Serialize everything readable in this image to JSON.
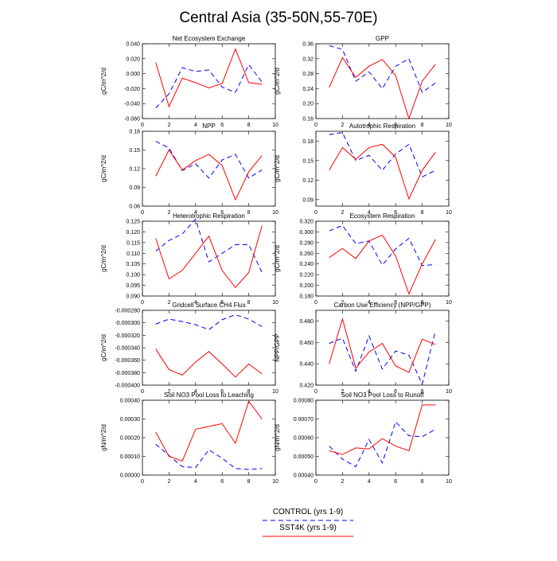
{
  "figure": {
    "title": "Central Asia (35-50N,55-70E)"
  },
  "legend": {
    "placement": "bottom-center",
    "entries": [
      {
        "label": "CONTROL (yrs 1-9)",
        "color": "#0000ff",
        "style": "dashed"
      },
      {
        "label": "SST4K (yrs 1-9)",
        "color": "#ff0000",
        "style": "solid"
      }
    ]
  },
  "chart_data": [
    {
      "type": "line",
      "title": "Net Ecosystem Exchange",
      "ylabel": "gC/m^2/d",
      "x": [
        1,
        2,
        3,
        4,
        5,
        6,
        7,
        8,
        9
      ],
      "xlim": [
        0,
        10
      ],
      "xticks": [
        "0",
        "2",
        "4",
        "6",
        "8",
        "10"
      ],
      "ylim": [
        -0.06,
        0.04
      ],
      "yticks": [
        "-0.060",
        "-0.040",
        "-0.020",
        "0.000",
        "0.020",
        "0.040"
      ],
      "series": [
        {
          "name": "CONTROL (yrs 1-9)",
          "color": "#0000ff",
          "style": "dashed",
          "values": [
            -0.046,
            -0.027,
            0.008,
            0.003,
            0.005,
            -0.018,
            -0.025,
            0.012,
            -0.011
          ]
        },
        {
          "name": "SST4K (yrs 1-9)",
          "color": "#ff0000",
          "style": "solid",
          "values": [
            0.015,
            -0.044,
            -0.006,
            -0.012,
            -0.019,
            -0.013,
            0.033,
            -0.012,
            -0.014
          ]
        }
      ]
    },
    {
      "type": "line",
      "title": "GPP",
      "ylabel": "gC/m^2/d",
      "x": [
        1,
        2,
        3,
        4,
        5,
        6,
        7,
        8,
        9
      ],
      "xlim": [
        0,
        10
      ],
      "xticks": [
        "0",
        "2",
        "4",
        "6",
        "8",
        "10"
      ],
      "ylim": [
        0.16,
        0.36
      ],
      "yticks": [
        "0.16",
        "0.20",
        "0.24",
        "0.28",
        "0.32",
        "0.36"
      ],
      "series": [
        {
          "name": "CONTROL (yrs 1-9)",
          "color": "#0000ff",
          "style": "dashed",
          "values": [
            0.355,
            0.345,
            0.26,
            0.285,
            0.24,
            0.3,
            0.32,
            0.23,
            0.255
          ]
        },
        {
          "name": "SST4K (yrs 1-9)",
          "color": "#ff0000",
          "style": "solid",
          "values": [
            0.243,
            0.323,
            0.27,
            0.3,
            0.318,
            0.275,
            0.16,
            0.26,
            0.305
          ]
        }
      ]
    },
    {
      "type": "line",
      "title": "NPP",
      "ylabel": "gC/m^2/d",
      "x": [
        1,
        2,
        3,
        4,
        5,
        6,
        7,
        8,
        9
      ],
      "xlim": [
        0,
        10
      ],
      "xticks": [
        "0",
        "2",
        "4",
        "6",
        "8",
        "10"
      ],
      "ylim": [
        0.06,
        0.18
      ],
      "yticks": [
        "0.06",
        "0.09",
        "0.12",
        "0.15",
        "0.18"
      ],
      "series": [
        {
          "name": "CONTROL (yrs 1-9)",
          "color": "#0000ff",
          "style": "dashed",
          "values": [
            0.164,
            0.153,
            0.117,
            0.128,
            0.105,
            0.134,
            0.143,
            0.105,
            0.118
          ]
        },
        {
          "name": "SST4K (yrs 1-9)",
          "color": "#ff0000",
          "style": "solid",
          "values": [
            0.108,
            0.15,
            0.118,
            0.133,
            0.143,
            0.125,
            0.07,
            0.115,
            0.141
          ]
        }
      ]
    },
    {
      "type": "line",
      "title": "Autotrophic Respiration",
      "ylabel": "gC/m^2/d",
      "x": [
        1,
        2,
        3,
        4,
        5,
        6,
        7,
        8,
        9
      ],
      "xlim": [
        0,
        10
      ],
      "xticks": [
        "0",
        "2",
        "4",
        "6",
        "8",
        "10"
      ],
      "ylim": [
        0.08,
        0.195
      ],
      "yticks": [
        "0.09",
        "0.12",
        "0.15",
        "0.18"
      ],
      "series": [
        {
          "name": "CONTROL (yrs 1-9)",
          "color": "#0000ff",
          "style": "dashed",
          "values": [
            0.19,
            0.193,
            0.15,
            0.158,
            0.135,
            0.16,
            0.175,
            0.125,
            0.135
          ]
        },
        {
          "name": "SST4K (yrs 1-9)",
          "color": "#ff0000",
          "style": "solid",
          "values": [
            0.135,
            0.17,
            0.152,
            0.17,
            0.175,
            0.155,
            0.091,
            0.135,
            0.163
          ]
        }
      ]
    },
    {
      "type": "line",
      "title": "Heterotrophic Respiration",
      "ylabel": "gC/m^2/d",
      "x": [
        1,
        2,
        3,
        4,
        5,
        6,
        7,
        8,
        9
      ],
      "xlim": [
        0,
        10
      ],
      "xticks": [
        "0",
        "2",
        "4",
        "6",
        "8",
        "10"
      ],
      "ylim": [
        0.09,
        0.125
      ],
      "yticks": [
        "0.090",
        "0.095",
        "0.100",
        "0.105",
        "0.110",
        "0.115",
        "0.120",
        "0.125"
      ],
      "series": [
        {
          "name": "CONTROL (yrs 1-9)",
          "color": "#0000ff",
          "style": "dashed",
          "values": [
            0.111,
            0.116,
            0.119,
            0.126,
            0.106,
            0.11,
            0.114,
            0.114,
            0.101
          ]
        },
        {
          "name": "SST4K (yrs 1-9)",
          "color": "#ff0000",
          "style": "solid",
          "values": [
            0.117,
            0.098,
            0.102,
            0.11,
            0.118,
            0.102,
            0.094,
            0.101,
            0.123
          ]
        }
      ]
    },
    {
      "type": "line",
      "title": "Ecosystem Respiration",
      "ylabel": "gC/m^2/d",
      "x": [
        1,
        2,
        3,
        4,
        5,
        6,
        7,
        8,
        9
      ],
      "xlim": [
        0,
        10
      ],
      "xticks": [
        "0",
        "2",
        "4",
        "6",
        "8",
        "10"
      ],
      "ylim": [
        0.18,
        0.32
      ],
      "yticks": [
        "0.180",
        "0.200",
        "0.220",
        "0.240",
        "0.260",
        "0.280",
        "0.300",
        "0.320"
      ],
      "series": [
        {
          "name": "CONTROL (yrs 1-9)",
          "color": "#0000ff",
          "style": "dashed",
          "values": [
            0.302,
            0.312,
            0.278,
            0.283,
            0.238,
            0.268,
            0.288,
            0.237,
            0.239
          ]
        },
        {
          "name": "SST4K (yrs 1-9)",
          "color": "#ff0000",
          "style": "solid",
          "values": [
            0.252,
            0.269,
            0.25,
            0.283,
            0.294,
            0.255,
            0.184,
            0.24,
            0.286
          ]
        }
      ]
    },
    {
      "type": "line",
      "title": "Gridcell Surface CH4 Flux",
      "ylabel": "gC/m^2/d",
      "x": [
        1,
        2,
        3,
        4,
        5,
        6,
        7,
        8,
        9
      ],
      "xlim": [
        0,
        10
      ],
      "xticks": [
        "0",
        "2",
        "4",
        "6",
        "8",
        "10"
      ],
      "ylim": [
        -0.0004,
        -0.00028
      ],
      "yticks": [
        "-0.000400",
        "-0.000380",
        "-0.000360",
        "-0.000340",
        "-0.000320",
        "-0.000300",
        "-0.000280"
      ],
      "series": [
        {
          "name": "CONTROL (yrs 1-9)",
          "color": "#0000ff",
          "style": "dashed",
          "values": [
            -0.000302,
            -0.000294,
            -0.000298,
            -0.000303,
            -0.000311,
            -0.000295,
            -0.000287,
            -0.000294,
            -0.000306
          ]
        },
        {
          "name": "SST4K (yrs 1-9)",
          "color": "#ff0000",
          "style": "solid",
          "values": [
            -0.000342,
            -0.000375,
            -0.000384,
            -0.000363,
            -0.000346,
            -0.000366,
            -0.000387,
            -0.000366,
            -0.000382
          ]
        }
      ]
    },
    {
      "type": "line",
      "title": "Carbon Use Efficiency (NPP/GPP)",
      "ylabel": "NPP/GPP",
      "x": [
        1,
        2,
        3,
        4,
        5,
        6,
        7,
        8,
        9
      ],
      "xlim": [
        0,
        10
      ],
      "xticks": [
        "0",
        "2",
        "4",
        "6",
        "8",
        "10"
      ],
      "ylim": [
        0.42,
        0.49
      ],
      "yticks": [
        "0.420",
        "0.440",
        "0.460",
        "0.480"
      ],
      "series": [
        {
          "name": "CONTROL (yrs 1-9)",
          "color": "#0000ff",
          "style": "dashed",
          "values": [
            0.459,
            0.464,
            0.433,
            0.466,
            0.435,
            0.452,
            0.448,
            0.421,
            0.471
          ]
        },
        {
          "name": "SST4K (yrs 1-9)",
          "color": "#ff0000",
          "style": "solid",
          "values": [
            0.44,
            0.482,
            0.436,
            0.451,
            0.459,
            0.438,
            0.432,
            0.463,
            0.458
          ]
        }
      ]
    },
    {
      "type": "line",
      "title": "Soil NO3 Pool Loss to Leaching",
      "ylabel": "gN/m^2/d",
      "x": [
        1,
        2,
        3,
        4,
        5,
        6,
        7,
        8,
        9
      ],
      "xlim": [
        0,
        10
      ],
      "xticks": [
        "0",
        "2",
        "4",
        "6",
        "8",
        "10"
      ],
      "ylim": [
        0.0,
        0.0004
      ],
      "yticks": [
        "0.00000",
        "0.00010",
        "0.00020",
        "0.00030",
        "0.00040"
      ],
      "series": [
        {
          "name": "CONTROL (yrs 1-9)",
          "color": "#0000ff",
          "style": "dashed",
          "values": [
            0.000165,
            0.000105,
            4.5e-05,
            4e-05,
            0.000135,
            9e-05,
            3.5e-05,
            3e-05,
            3.5e-05
          ]
        },
        {
          "name": "SST4K (yrs 1-9)",
          "color": "#ff0000",
          "style": "solid",
          "values": [
            0.00023,
            0.0001,
            7.5e-05,
            0.000245,
            0.00026,
            0.000275,
            0.00017,
            0.000395,
            0.0003
          ]
        }
      ]
    },
    {
      "type": "line",
      "title": "Soil NO3 Pool Loss to Runoff",
      "ylabel": "gN/m^2/d",
      "x": [
        1,
        2,
        3,
        4,
        5,
        6,
        7,
        8,
        9
      ],
      "xlim": [
        0,
        10
      ],
      "xticks": [
        "0",
        "2",
        "4",
        "6",
        "8",
        "10"
      ],
      "ylim": [
        0.0004,
        0.0008
      ],
      "yticks": [
        "0.00040",
        "0.00050",
        "0.00060",
        "0.00070",
        "0.00080"
      ],
      "series": [
        {
          "name": "CONTROL (yrs 1-9)",
          "color": "#0000ff",
          "style": "dashed",
          "values": [
            0.000555,
            0.000485,
            0.000445,
            0.00059,
            0.000465,
            0.000685,
            0.00061,
            0.000605,
            0.000645
          ]
        },
        {
          "name": "SST4K (yrs 1-9)",
          "color": "#ff0000",
          "style": "solid",
          "values": [
            0.00053,
            0.00051,
            0.000545,
            0.00054,
            0.000595,
            0.000555,
            0.00053,
            0.000775,
            0.000775
          ]
        }
      ]
    }
  ]
}
